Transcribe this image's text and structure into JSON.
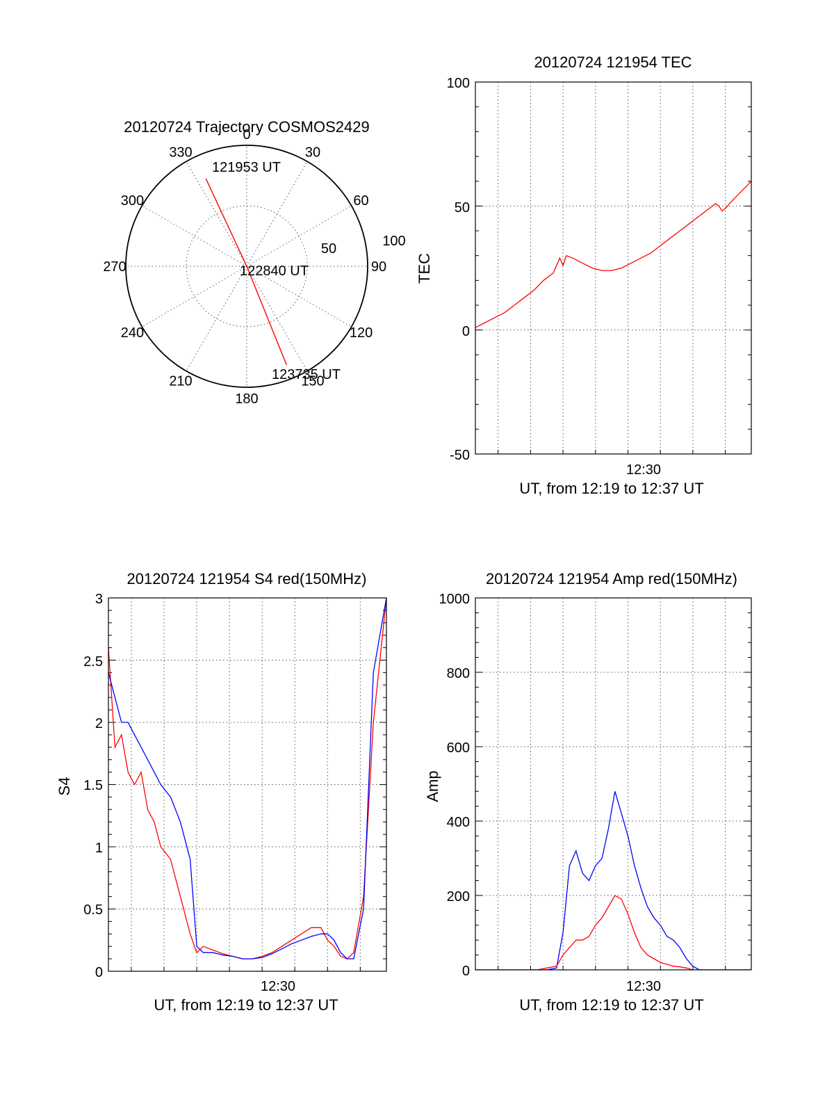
{
  "colors": {
    "red": "#ff0000",
    "blue": "#0000ff",
    "axis": "#000000"
  },
  "chart_data": [
    {
      "type": "polar",
      "title": "20120724 Trajectory COSMOS2429",
      "azimuth_labels": [
        "0",
        "30",
        "60",
        "90",
        "120",
        "150",
        "180",
        "210",
        "240",
        "270",
        "300",
        "330"
      ],
      "radial_labels": [
        "50",
        "100"
      ],
      "rlim": [
        0,
        100
      ],
      "trajectory": {
        "color": "red",
        "points": [
          {
            "az": 335,
            "r": 80,
            "time": "121953 UT"
          },
          {
            "az": 0,
            "r": 0,
            "time": "122840 UT"
          },
          {
            "az": 158,
            "r": 88,
            "time": "123735 UT"
          }
        ]
      },
      "time_labels": [
        "121953 UT",
        "122840 UT",
        "123735 UT"
      ]
    },
    {
      "type": "line",
      "title": "20120724 121954 TEC",
      "ylabel": "TEC",
      "xlabel": "UT, from 12:19 to 12:37 UT",
      "xtick_labels": [
        "12:30"
      ],
      "ytick_labels": [
        "-50",
        "0",
        "50",
        "100"
      ],
      "xlim_minutes": [
        12.3,
        20.8
      ],
      "ylim": [
        -50,
        100
      ],
      "grid": true,
      "series": [
        {
          "color": "red",
          "x_minutes": [
            12.3,
            12.6,
            12.9,
            13.2,
            13.5,
            13.8,
            14.1,
            14.4,
            14.7,
            14.9,
            15.0,
            15.1,
            15.3,
            15.6,
            15.9,
            16.2,
            16.5,
            16.8,
            17.1,
            17.4,
            17.7,
            18.0,
            18.3,
            18.6,
            18.9,
            19.2,
            19.5,
            19.7,
            19.8,
            19.9,
            20.0,
            20.2,
            20.5,
            20.8
          ],
          "y": [
            1,
            3,
            5,
            7,
            10,
            13,
            16,
            20,
            23,
            29,
            26,
            30,
            29,
            27,
            25,
            24,
            24,
            25,
            27,
            29,
            31,
            34,
            37,
            40,
            43,
            46,
            49,
            51,
            50,
            48,
            49,
            52,
            56,
            60
          ]
        }
      ]
    },
    {
      "type": "line",
      "title": "20120724 121954 S4 red(150MHz)",
      "ylabel": "S4",
      "xlabel": "UT, from 12:19 to 12:37 UT",
      "xtick_labels": [
        "12:30"
      ],
      "ytick_labels": [
        "0",
        "0.5",
        "1",
        "1.5",
        "2",
        "2.5",
        "3"
      ],
      "xlim_minutes": [
        12.3,
        20.8
      ],
      "ylim": [
        0,
        3
      ],
      "grid": true,
      "series": [
        {
          "color": "red",
          "x_minutes": [
            12.3,
            12.5,
            12.7,
            12.9,
            13.1,
            13.3,
            13.5,
            13.7,
            13.9,
            14.2,
            14.5,
            14.8,
            15.0,
            15.2,
            15.5,
            15.8,
            16.1,
            16.4,
            16.7,
            17.0,
            17.3,
            17.6,
            17.9,
            18.2,
            18.5,
            18.8,
            19.0,
            19.2,
            19.4,
            19.6,
            19.8,
            20.1,
            20.4,
            20.8
          ],
          "y": [
            2.6,
            1.8,
            1.9,
            1.6,
            1.5,
            1.6,
            1.3,
            1.2,
            1.0,
            0.9,
            0.6,
            0.3,
            0.15,
            0.2,
            0.17,
            0.14,
            0.12,
            0.1,
            0.1,
            0.12,
            0.15,
            0.2,
            0.25,
            0.3,
            0.35,
            0.35,
            0.25,
            0.2,
            0.12,
            0.1,
            0.15,
            0.6,
            2.0,
            3.0
          ]
        },
        {
          "color": "blue",
          "x_minutes": [
            12.3,
            12.5,
            12.7,
            12.9,
            13.1,
            13.3,
            13.5,
            13.7,
            13.9,
            14.2,
            14.5,
            14.8,
            15.0,
            15.2,
            15.5,
            15.8,
            16.1,
            16.4,
            16.7,
            17.0,
            17.3,
            17.6,
            17.9,
            18.2,
            18.5,
            18.8,
            19.0,
            19.2,
            19.4,
            19.6,
            19.8,
            20.1,
            20.4,
            20.8
          ],
          "y": [
            2.4,
            2.2,
            2.0,
            2.0,
            1.9,
            1.8,
            1.7,
            1.6,
            1.5,
            1.4,
            1.2,
            0.9,
            0.2,
            0.15,
            0.15,
            0.13,
            0.12,
            0.1,
            0.1,
            0.11,
            0.14,
            0.18,
            0.22,
            0.25,
            0.28,
            0.3,
            0.3,
            0.25,
            0.15,
            0.1,
            0.1,
            0.5,
            2.4,
            3.0
          ]
        }
      ]
    },
    {
      "type": "line",
      "title": "20120724 121954 Amp red(150MHz)",
      "ylabel": "Amp",
      "xlabel": "UT, from 12:19 to 12:37 UT",
      "xtick_labels": [
        "12:30"
      ],
      "ytick_labels": [
        "0",
        "200",
        "400",
        "600",
        "800",
        "1000"
      ],
      "xlim_minutes": [
        12.3,
        20.8
      ],
      "ylim": [
        0,
        1000
      ],
      "grid": true,
      "series": [
        {
          "color": "blue",
          "x_minutes": [
            12.3,
            14.5,
            14.8,
            15.0,
            15.2,
            15.4,
            15.6,
            15.8,
            16.0,
            16.2,
            16.4,
            16.6,
            16.8,
            17.0,
            17.2,
            17.4,
            17.6,
            17.8,
            18.0,
            18.2,
            18.4,
            18.6,
            18.8,
            19.0,
            19.2,
            20.8
          ],
          "y": [
            0,
            0,
            5,
            100,
            280,
            320,
            260,
            240,
            280,
            300,
            380,
            480,
            420,
            360,
            280,
            220,
            170,
            140,
            120,
            90,
            80,
            60,
            30,
            10,
            0,
            0
          ]
        },
        {
          "color": "red",
          "x_minutes": [
            12.3,
            14.2,
            14.5,
            14.8,
            15.0,
            15.2,
            15.4,
            15.6,
            15.8,
            16.0,
            16.2,
            16.4,
            16.6,
            16.8,
            17.0,
            17.2,
            17.4,
            17.6,
            17.8,
            18.0,
            18.2,
            18.4,
            18.6,
            18.8,
            19.0,
            20.8
          ],
          "y": [
            0,
            0,
            5,
            10,
            40,
            60,
            80,
            80,
            90,
            120,
            140,
            170,
            200,
            190,
            150,
            100,
            60,
            40,
            30,
            20,
            15,
            10,
            8,
            5,
            0,
            0
          ]
        }
      ]
    }
  ]
}
